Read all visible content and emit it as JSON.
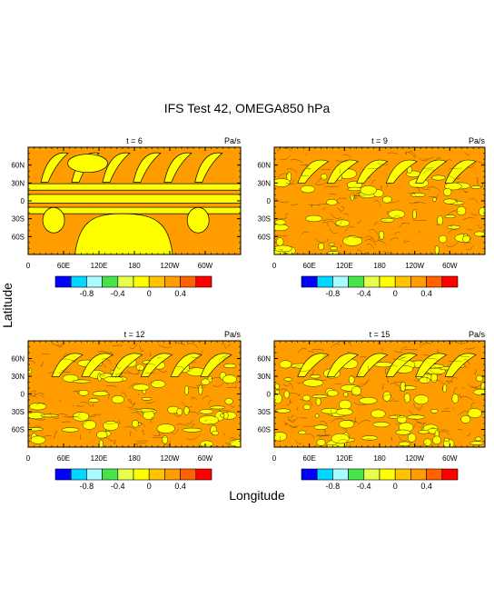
{
  "figure": {
    "title": "IFS Test 42, OMEGA850 hPa",
    "xlabel": "Longitude",
    "ylabel": "Latitude"
  },
  "chart_data": [
    {
      "type": "heatmap",
      "panel_title": "t = 6",
      "units": "Pa/s",
      "x_ticks": [
        "0",
        "60E",
        "120E",
        "180",
        "120W",
        "60W"
      ],
      "y_ticks": [
        "60N",
        "30N",
        "0",
        "30S",
        "60S"
      ],
      "xlim": [
        0,
        360
      ],
      "ylim": [
        -90,
        90
      ],
      "colorbar": {
        "colors": [
          "#0000ff",
          "#00d8ff",
          "#a8fbff",
          "#47e447",
          "#e6ff4c",
          "#ffff00",
          "#ffc300",
          "#ff9c00",
          "#ff6200",
          "#ff0000"
        ],
        "tick_labels": [
          "-0.8",
          "-0.4",
          "0",
          "0.4"
        ]
      }
    },
    {
      "type": "heatmap",
      "panel_title": "t = 9",
      "units": "Pa/s",
      "x_ticks": [
        "0",
        "60E",
        "120E",
        "180",
        "120W",
        "60W"
      ],
      "y_ticks": [
        "60N",
        "30N",
        "0",
        "30S",
        "60S"
      ],
      "xlim": [
        0,
        360
      ],
      "ylim": [
        -90,
        90
      ],
      "colorbar": {
        "colors": [
          "#0000ff",
          "#00d8ff",
          "#a8fbff",
          "#47e447",
          "#e6ff4c",
          "#ffff00",
          "#ffc300",
          "#ff9c00",
          "#ff6200",
          "#ff0000"
        ],
        "tick_labels": [
          "-0.8",
          "-0.4",
          "0",
          "0.4"
        ]
      }
    },
    {
      "type": "heatmap",
      "panel_title": "t = 12",
      "units": "Pa/s",
      "x_ticks": [
        "0",
        "60E",
        "120E",
        "180",
        "120W",
        "60W"
      ],
      "y_ticks": [
        "60N",
        "30N",
        "0",
        "30S",
        "60S"
      ],
      "xlim": [
        0,
        360
      ],
      "ylim": [
        -90,
        90
      ],
      "colorbar": {
        "colors": [
          "#0000ff",
          "#00d8ff",
          "#a8fbff",
          "#47e447",
          "#e6ff4c",
          "#ffff00",
          "#ffc300",
          "#ff9c00",
          "#ff6200",
          "#ff0000"
        ],
        "tick_labels": [
          "-0.8",
          "-0.4",
          "0",
          "0.4"
        ]
      }
    },
    {
      "type": "heatmap",
      "panel_title": "t = 15",
      "units": "Pa/s",
      "x_ticks": [
        "0",
        "60E",
        "120E",
        "180",
        "120W",
        "60W"
      ],
      "y_ticks": [
        "60N",
        "30N",
        "0",
        "30S",
        "60S"
      ],
      "xlim": [
        0,
        360
      ],
      "ylim": [
        -90,
        90
      ],
      "colorbar": {
        "colors": [
          "#0000ff",
          "#00d8ff",
          "#a8fbff",
          "#47e447",
          "#e6ff4c",
          "#ffff00",
          "#ffc300",
          "#ff9c00",
          "#ff6200",
          "#ff0000"
        ],
        "tick_labels": [
          "-0.8",
          "-0.4",
          "0",
          "0.4"
        ]
      }
    }
  ]
}
